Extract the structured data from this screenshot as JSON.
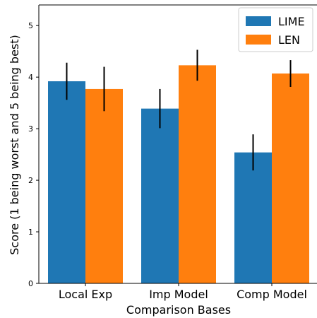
{
  "chart_data": {
    "type": "bar",
    "title": "",
    "xlabel": "Comparison Bases",
    "ylabel": "Score (1 being worst and 5 being best)",
    "categories": [
      "Local Exp",
      "Imp Model",
      "Comp Model"
    ],
    "ylim": [
      0,
      5.4
    ],
    "yticks": [
      0,
      1,
      2,
      3,
      4,
      5
    ],
    "ytick_labels": [
      "0",
      "1",
      "2",
      "3",
      "4",
      "5"
    ],
    "grid": false,
    "legend": "top-right",
    "series": [
      {
        "name": "LIME",
        "color": "#1f77b4",
        "values": [
          3.92,
          3.39,
          2.54
        ],
        "errors": [
          0.36,
          0.38,
          0.35
        ]
      },
      {
        "name": "LEN",
        "color": "#ff7f0e",
        "values": [
          3.77,
          4.23,
          4.07
        ],
        "errors": [
          0.43,
          0.3,
          0.26
        ]
      }
    ]
  }
}
